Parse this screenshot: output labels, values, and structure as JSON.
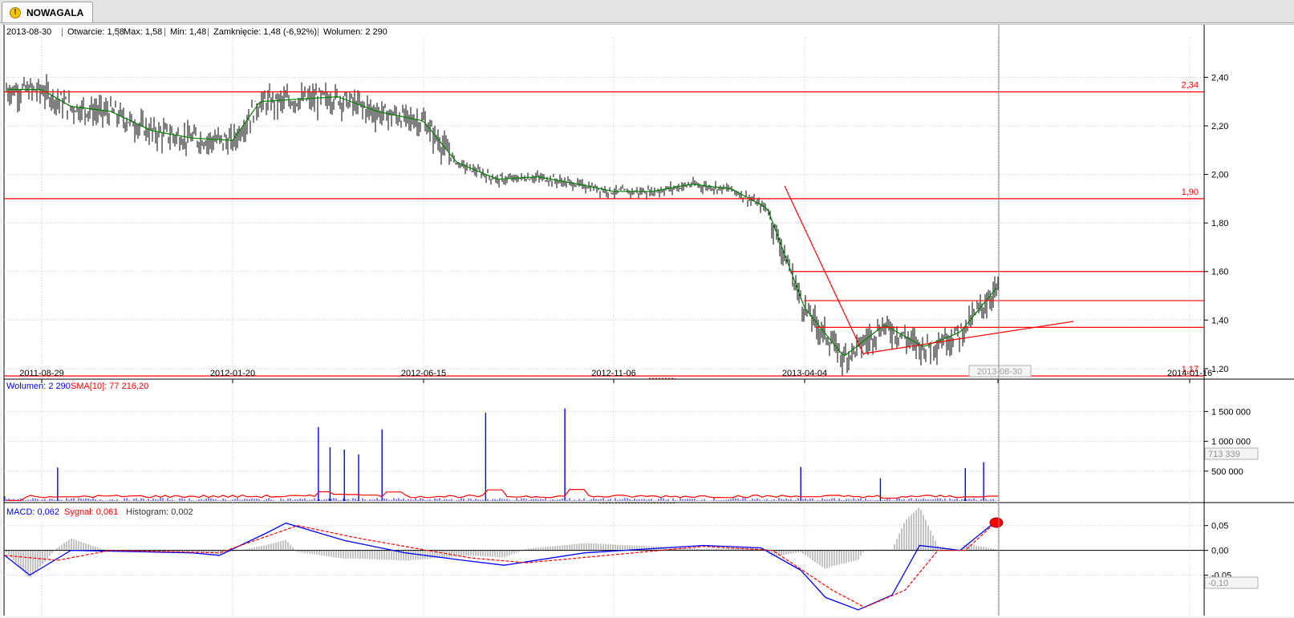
{
  "tab": {
    "title": "NOWAGALA",
    "icon": "warning-icon"
  },
  "info_bar": {
    "date": "2013-08-30",
    "open": "Otwarcie: 1,58",
    "max": "Max: 1,58",
    "min": "Min: 1,48",
    "close": "Zamknięcie: 1,48 (-6,92%)",
    "volume": "Wolumen: 2 290"
  },
  "volume_legend": {
    "volume": "Wolumen: 2 290",
    "sma": "SMA[10]: 77 216,20"
  },
  "macd_legend": {
    "macd": "MACD: 0,062",
    "signal": "Sygnał: 0,061",
    "histogram": "Histogram: 0,002"
  },
  "cursor": {
    "date_label": "2013-08-30",
    "volume_label": "713 339",
    "macd_label": "-0,10"
  },
  "colors": {
    "price": "#000000",
    "sma": "#008000",
    "hline": "#ff0000",
    "volume": "#0000ff",
    "volume_sma": "#ff0000",
    "macd": "#0000ff",
    "signal": "#ff0000"
  },
  "chart_data": [
    {
      "type": "candlestick",
      "title": "",
      "x_ticks": [
        "2011-08-29",
        "2012-01-20",
        "2012-06-15",
        "2012-11-06",
        "2013-04-04",
        "2013-08-30",
        "2014-01-16"
      ],
      "y_ticks": [
        "2,40",
        "2,20",
        "2,00",
        "1,80",
        "1,60",
        "1,40",
        "1,20"
      ],
      "ylim": [
        1.16,
        2.55
      ],
      "horizontal_line_labels": [
        "2,34",
        "1,90",
        "1,17"
      ],
      "horizontal_lines": [
        2.34,
        1.9,
        1.17
      ],
      "other_levels": [
        1.6,
        1.48,
        1.37
      ],
      "price_path": [
        [
          "2011-08-29",
          2.35
        ],
        [
          "2011-09-20",
          2.28
        ],
        [
          "2011-10-20",
          2.26
        ],
        [
          "2011-11-20",
          2.18
        ],
        [
          "2011-12-20",
          2.15
        ],
        [
          "2012-01-20",
          2.14
        ],
        [
          "2012-02-10",
          2.3
        ],
        [
          "2012-03-10",
          2.31
        ],
        [
          "2012-04-10",
          2.32
        ],
        [
          "2012-05-10",
          2.26
        ],
        [
          "2012-06-15",
          2.22
        ],
        [
          "2012-07-10",
          2.05
        ],
        [
          "2012-08-10",
          1.98
        ],
        [
          "2012-09-10",
          1.99
        ],
        [
          "2012-10-10",
          1.96
        ],
        [
          "2012-11-06",
          1.93
        ],
        [
          "2012-12-06",
          1.93
        ],
        [
          "2013-01-06",
          1.96
        ],
        [
          "2013-02-06",
          1.94
        ],
        [
          "2013-03-06",
          1.86
        ],
        [
          "2013-04-04",
          1.45
        ],
        [
          "2013-05-04",
          1.25
        ],
        [
          "2013-06-04",
          1.38
        ],
        [
          "2013-07-04",
          1.29
        ],
        [
          "2013-08-01",
          1.35
        ],
        [
          "2013-08-30",
          1.54
        ]
      ]
    },
    {
      "type": "bar",
      "title": "",
      "y_ticks": [
        "1 500 000",
        "1 000 000",
        "500 000"
      ],
      "ylim": [
        0,
        1800000
      ],
      "series": [
        {
          "name": "Wolumen",
          "spikes": [
            [
              "2011-08-01",
              80000
            ],
            [
              "2011-09-10",
              560000
            ],
            [
              "2012-03-26",
              1240000
            ],
            [
              "2012-04-04",
              900000
            ],
            [
              "2012-04-15",
              860000
            ],
            [
              "2012-04-26",
              780000
            ],
            [
              "2012-05-14",
              1200000
            ],
            [
              "2012-08-01",
              1480000
            ],
            [
              "2012-09-30",
              1550000
            ],
            [
              "2013-04-01",
              570000
            ],
            [
              "2013-06-01",
              380000
            ],
            [
              "2013-08-05",
              550000
            ],
            [
              "2013-08-19",
              650000
            ]
          ]
        },
        {
          "name": "SMA[10]",
          "level": 77216.2
        }
      ]
    },
    {
      "type": "line",
      "title": "",
      "y_ticks": [
        "0,05",
        "0,00",
        "-0,05"
      ],
      "ylim": [
        -0.13,
        0.09
      ],
      "series": [
        {
          "name": "MACD",
          "values": [
            [
              "2011-08-01",
              -0.01
            ],
            [
              "2011-08-20",
              -0.05
            ],
            [
              "2011-09-20",
              0.0
            ],
            [
              "2011-12-20",
              -0.005
            ],
            [
              "2012-01-10",
              -0.01
            ],
            [
              "2012-02-15",
              0.035
            ],
            [
              "2012-03-01",
              0.055
            ],
            [
              "2012-04-15",
              0.02
            ],
            [
              "2012-06-01",
              -0.005
            ],
            [
              "2012-07-15",
              -0.02
            ],
            [
              "2012-08-15",
              -0.03
            ],
            [
              "2012-10-15",
              -0.005
            ],
            [
              "2013-01-15",
              0.01
            ],
            [
              "2013-03-01",
              0.005
            ],
            [
              "2013-04-01",
              -0.04
            ],
            [
              "2013-04-20",
              -0.095
            ],
            [
              "2013-05-15",
              -0.12
            ],
            [
              "2013-06-10",
              -0.09
            ],
            [
              "2013-07-01",
              0.01
            ],
            [
              "2013-08-01",
              0.0
            ],
            [
              "2013-08-30",
              0.062
            ]
          ]
        },
        {
          "name": "Sygnał",
          "values": [
            [
              "2011-08-01",
              -0.01
            ],
            [
              "2011-09-10",
              -0.02
            ],
            [
              "2011-10-20",
              0.0
            ],
            [
              "2012-01-10",
              -0.005
            ],
            [
              "2012-03-10",
              0.05
            ],
            [
              "2012-04-25",
              0.025
            ],
            [
              "2012-07-20",
              -0.015
            ],
            [
              "2012-09-01",
              -0.025
            ],
            [
              "2013-01-15",
              0.008
            ],
            [
              "2013-03-10",
              0.0
            ],
            [
              "2013-04-25",
              -0.08
            ],
            [
              "2013-05-20",
              -0.115
            ],
            [
              "2013-06-20",
              -0.08
            ],
            [
              "2013-07-15",
              0.0
            ],
            [
              "2013-08-05",
              0.0
            ],
            [
              "2013-08-30",
              0.061
            ]
          ]
        },
        {
          "name": "Histogram",
          "last": 0.002
        }
      ]
    }
  ]
}
